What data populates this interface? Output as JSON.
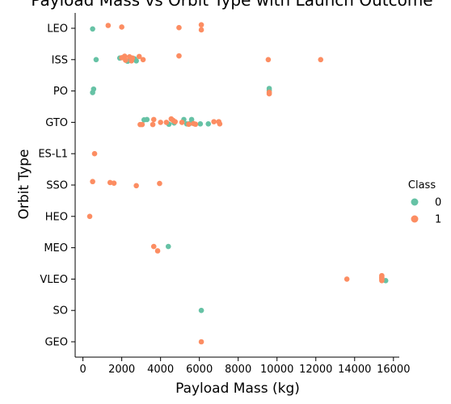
{
  "chart_data": {
    "type": "scatter",
    "title": "Payload Mass vs Orbit Type with Launch Outcome",
    "xlabel": "Payload Mass (kg)",
    "ylabel": "Orbit Type",
    "xlim": [
      -400,
      16300
    ],
    "xticks": [
      0,
      2000,
      4000,
      6000,
      8000,
      10000,
      12000,
      14000,
      16000
    ],
    "xtick_labels": [
      "0",
      "2000",
      "4000",
      "6000",
      "8000",
      "10000",
      "12000",
      "14000",
      "16000"
    ],
    "categories": [
      "LEO",
      "ISS",
      "PO",
      "GTO",
      "ES-L1",
      "SSO",
      "HEO",
      "MEO",
      "VLEO",
      "SO",
      "GEO"
    ],
    "grid": false,
    "legend": {
      "title": "Class",
      "placement": "right",
      "entries": [
        "0",
        "1"
      ]
    },
    "colors": {
      "0": "#66c2a5",
      "1": "#fc8d62"
    },
    "series": [
      {
        "name": "0",
        "points": [
          {
            "orbit": "LEO",
            "x": 500,
            "j": 0.02
          },
          {
            "orbit": "ISS",
            "x": 680,
            "j": 0.0
          },
          {
            "orbit": "ISS",
            "x": 1900,
            "j": -0.05
          },
          {
            "orbit": "ISS",
            "x": 2300,
            "j": 0.05
          },
          {
            "orbit": "ISS",
            "x": 2650,
            "j": -0.03
          },
          {
            "orbit": "ISS",
            "x": 2750,
            "j": 0.04
          },
          {
            "orbit": "PO",
            "x": 550,
            "j": -0.06
          },
          {
            "orbit": "PO",
            "x": 500,
            "j": 0.05
          },
          {
            "orbit": "PO",
            "x": 9600,
            "j": -0.08
          },
          {
            "orbit": "PO",
            "x": 9600,
            "j": -0.02
          },
          {
            "orbit": "GTO",
            "x": 3150,
            "j": -0.08
          },
          {
            "orbit": "GTO",
            "x": 3300,
            "j": -0.09
          },
          {
            "orbit": "GTO",
            "x": 4430,
            "j": 0.06
          },
          {
            "orbit": "GTO",
            "x": 4700,
            "j": 0.02
          },
          {
            "orbit": "GTO",
            "x": 5200,
            "j": -0.09
          },
          {
            "orbit": "GTO",
            "x": 5350,
            "j": 0.05
          },
          {
            "orbit": "GTO",
            "x": 5600,
            "j": -0.09
          },
          {
            "orbit": "GTO",
            "x": 6050,
            "j": 0.05
          },
          {
            "orbit": "GTO",
            "x": 6460,
            "j": 0.05
          },
          {
            "orbit": "GTO",
            "x": 5500,
            "j": 0.04
          },
          {
            "orbit": "MEO",
            "x": 4400,
            "j": -0.04
          },
          {
            "orbit": "VLEO",
            "x": 15600,
            "j": 0.05
          },
          {
            "orbit": "SO",
            "x": 6100,
            "j": 0.0
          }
        ]
      },
      {
        "name": "1",
        "points": [
          {
            "orbit": "LEO",
            "x": 1300,
            "j": -0.09
          },
          {
            "orbit": "LEO",
            "x": 2000,
            "j": -0.04
          },
          {
            "orbit": "LEO",
            "x": 4950,
            "j": -0.02
          },
          {
            "orbit": "LEO",
            "x": 6100,
            "j": -0.11
          },
          {
            "orbit": "LEO",
            "x": 6100,
            "j": 0.05
          },
          {
            "orbit": "ISS",
            "x": 2000,
            "j": -0.06
          },
          {
            "orbit": "ISS",
            "x": 2150,
            "j": -0.11
          },
          {
            "orbit": "ISS",
            "x": 2200,
            "j": 0.02
          },
          {
            "orbit": "ISS",
            "x": 2400,
            "j": -0.09
          },
          {
            "orbit": "ISS",
            "x": 2500,
            "j": 0.04
          },
          {
            "orbit": "ISS",
            "x": 2550,
            "j": -0.05
          },
          {
            "orbit": "ISS",
            "x": 2900,
            "j": -0.1
          },
          {
            "orbit": "ISS",
            "x": 3100,
            "j": 0.0
          },
          {
            "orbit": "ISS",
            "x": 4950,
            "j": -0.12
          },
          {
            "orbit": "ISS",
            "x": 9550,
            "j": 0.0
          },
          {
            "orbit": "ISS",
            "x": 12250,
            "j": 0.0
          },
          {
            "orbit": "PO",
            "x": 9600,
            "j": 0.04
          },
          {
            "orbit": "PO",
            "x": 9600,
            "j": 0.09
          },
          {
            "orbit": "GTO",
            "x": 2950,
            "j": 0.07
          },
          {
            "orbit": "GTO",
            "x": 3050,
            "j": 0.07
          },
          {
            "orbit": "GTO",
            "x": 3650,
            "j": -0.09
          },
          {
            "orbit": "GTO",
            "x": 3600,
            "j": 0.07
          },
          {
            "orbit": "GTO",
            "x": 4000,
            "j": 0.0
          },
          {
            "orbit": "GTO",
            "x": 4300,
            "j": 0.0
          },
          {
            "orbit": "GTO",
            "x": 4550,
            "j": -0.11
          },
          {
            "orbit": "GTO",
            "x": 4650,
            "j": -0.06
          },
          {
            "orbit": "GTO",
            "x": 4750,
            "j": -0.02
          },
          {
            "orbit": "GTO",
            "x": 5100,
            "j": 0.0
          },
          {
            "orbit": "GTO",
            "x": 5450,
            "j": 0.06
          },
          {
            "orbit": "GTO",
            "x": 5700,
            "j": 0.04
          },
          {
            "orbit": "GTO",
            "x": 5800,
            "j": 0.06
          },
          {
            "orbit": "GTO",
            "x": 6750,
            "j": -0.02
          },
          {
            "orbit": "GTO",
            "x": 7000,
            "j": -0.02
          },
          {
            "orbit": "GTO",
            "x": 7050,
            "j": 0.05
          },
          {
            "orbit": "ES-L1",
            "x": 600,
            "j": 0.0
          },
          {
            "orbit": "SSO",
            "x": 500,
            "j": -0.11
          },
          {
            "orbit": "SSO",
            "x": 1400,
            "j": -0.08
          },
          {
            "orbit": "SSO",
            "x": 1600,
            "j": -0.06
          },
          {
            "orbit": "SSO",
            "x": 2750,
            "j": 0.02
          },
          {
            "orbit": "SSO",
            "x": 3950,
            "j": -0.05
          },
          {
            "orbit": "HEO",
            "x": 350,
            "j": 0.0
          },
          {
            "orbit": "MEO",
            "x": 3650,
            "j": -0.04
          },
          {
            "orbit": "MEO",
            "x": 3850,
            "j": 0.1
          },
          {
            "orbit": "VLEO",
            "x": 13600,
            "j": 0.0
          },
          {
            "orbit": "VLEO",
            "x": 15400,
            "j": -0.11
          },
          {
            "orbit": "VLEO",
            "x": 15400,
            "j": -0.06
          },
          {
            "orbit": "VLEO",
            "x": 15400,
            "j": -0.03
          },
          {
            "orbit": "VLEO",
            "x": 15400,
            "j": 0.01
          },
          {
            "orbit": "VLEO",
            "x": 15400,
            "j": 0.05
          },
          {
            "orbit": "GEO",
            "x": 6100,
            "j": 0.0
          }
        ]
      }
    ]
  }
}
